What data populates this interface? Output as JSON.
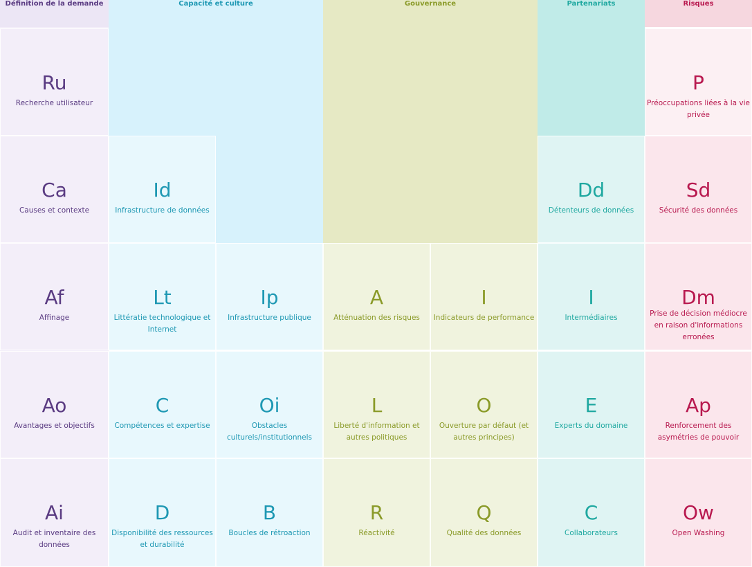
{
  "headers": {
    "definition": "Définition de la demande",
    "capacite": "Capacité et culture",
    "gouvernance": "Gouvernance",
    "partenariats": "Partenariats",
    "risques": "Risques"
  },
  "colors": {
    "definition_text": "#5a3b82",
    "capacite_text": "#1e98b3",
    "gouvernance_text": "#8a9a28",
    "partenariats_text": "#1fa8a0",
    "risques_text": "#b8194f"
  },
  "cells": {
    "ru": {
      "symbol": "Ru",
      "label": "Recherche utilisateur"
    },
    "ca": {
      "symbol": "Ca",
      "label": "Causes et contexte"
    },
    "af": {
      "symbol": "Af",
      "label": "Affinage"
    },
    "ao": {
      "symbol": "Ao",
      "label": "Avantages et objectifs"
    },
    "ai": {
      "symbol": "Ai",
      "label": "Audit et inventaire des données"
    },
    "id": {
      "symbol": "Id",
      "label": "Infrastructure de données"
    },
    "lt": {
      "symbol": "Lt",
      "label": "Littératie technologique et Internet"
    },
    "c1": {
      "symbol": "C",
      "label": "Compétences et expertise"
    },
    "d": {
      "symbol": "D",
      "label": "Disponibilité des ressources et durabilité"
    },
    "ip": {
      "symbol": "Ip",
      "label": "Infrastructure publique"
    },
    "oi": {
      "symbol": "Oi",
      "label": "Obstacles culturels/institutionnels"
    },
    "b": {
      "symbol": "B",
      "label": "Boucles de rétroaction"
    },
    "a": {
      "symbol": "A",
      "label": "Atténuation des risques"
    },
    "l": {
      "symbol": "L",
      "label": "Liberté d'information et autres politiques"
    },
    "r": {
      "symbol": "R",
      "label": "Réactivité"
    },
    "i1": {
      "symbol": "I",
      "label": "Indicateurs de performance"
    },
    "o": {
      "symbol": "O",
      "label": "Ouverture par défaut (et autres principes)"
    },
    "q": {
      "symbol": "Q",
      "label": "Qualité des données"
    },
    "dd": {
      "symbol": "Dd",
      "label": "Détenteurs de données"
    },
    "i2": {
      "symbol": "I",
      "label": "Intermédiaires"
    },
    "e": {
      "symbol": "E",
      "label": "Experts du domaine"
    },
    "c2": {
      "symbol": "C",
      "label": "Collaborateurs"
    },
    "p": {
      "symbol": "P",
      "label": "Préoccupations liées à la vie privée"
    },
    "sd": {
      "symbol": "Sd",
      "label": "Sécurité des données"
    },
    "dm": {
      "symbol": "Dm",
      "label": "Prise de décision médiocre en raison d'informations erronées"
    },
    "ap": {
      "symbol": "Ap",
      "label": "Renforcement des asymétries de pouvoir"
    },
    "ow": {
      "symbol": "Ow",
      "label": "Open Washing"
    }
  }
}
